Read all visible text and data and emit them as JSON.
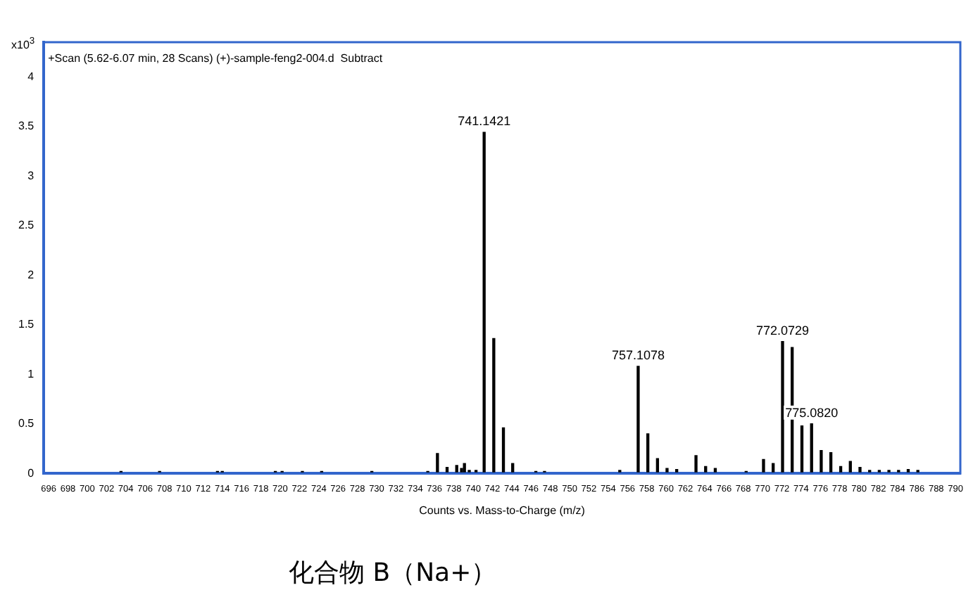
{
  "chart_data": {
    "type": "bar",
    "subtitle": "+Scan (5.62-6.07 min, 28 Scans) (+)-sample-feng2-004.d  Subtract",
    "xlabel": "Counts vs. Mass-to-Charge (m/z)",
    "ylabel": "x10$^{3}$",
    "x": [
      703.5,
      707.5,
      713.5,
      714,
      719.5,
      720.2,
      722.3,
      724.3,
      729.5,
      735.3,
      736.3,
      737.3,
      738.3,
      738.8,
      739.1,
      739.6,
      740.3,
      741.1421,
      742.14,
      743.14,
      744.1,
      746.5,
      747.4,
      755.2,
      757.1078,
      758.11,
      759.11,
      760.1,
      761.1,
      763.1,
      764.1,
      765.1,
      768.3,
      770.1,
      771.1,
      772.0729,
      773.07,
      774.08,
      775.082,
      776.08,
      777.08,
      778.1,
      779.1,
      780.1,
      781.1,
      782.1,
      783.1,
      784.1,
      785.1,
      786.1
    ],
    "values": [
      0.02,
      0.02,
      0.02,
      0.02,
      0.02,
      0.02,
      0.02,
      0.02,
      0.02,
      0.02,
      0.2,
      0.06,
      0.08,
      0.05,
      0.1,
      0.03,
      0.03,
      3.44,
      1.36,
      0.46,
      0.1,
      0.02,
      0.02,
      0.03,
      1.08,
      0.4,
      0.15,
      0.05,
      0.04,
      0.18,
      0.07,
      0.05,
      0.02,
      0.14,
      0.1,
      1.33,
      1.27,
      0.48,
      0.5,
      0.23,
      0.21,
      0.07,
      0.12,
      0.06,
      0.03,
      0.03,
      0.03,
      0.03,
      0.04,
      0.03
    ],
    "color": "#000000",
    "xlim": [
      695.5,
      790.5
    ],
    "xticks": [
      696,
      698,
      700,
      702,
      704,
      706,
      708,
      710,
      712,
      714,
      716,
      718,
      720,
      722,
      724,
      726,
      728,
      730,
      732,
      734,
      736,
      738,
      740,
      742,
      744,
      746,
      748,
      750,
      752,
      754,
      756,
      758,
      760,
      762,
      764,
      766,
      768,
      770,
      772,
      774,
      776,
      778,
      780,
      782,
      784,
      786,
      788,
      790
    ],
    "ylim": [
      0,
      4.35
    ],
    "yticks": [
      0,
      0.5,
      1,
      1.5,
      2,
      2.5,
      3,
      3.5,
      4
    ],
    "grid": false,
    "legend": false,
    "annotations": [
      {
        "text": "741.1421",
        "x": 741.1421,
        "y": 3.44
      },
      {
        "text": "757.1078",
        "x": 757.1078,
        "y": 1.08
      },
      {
        "text": "772.0729",
        "x": 772.0729,
        "y": 1.33
      },
      {
        "text": "775.0820",
        "x": 775.082,
        "y": 0.5
      },
      "化合物 B（Na+）"
    ]
  }
}
